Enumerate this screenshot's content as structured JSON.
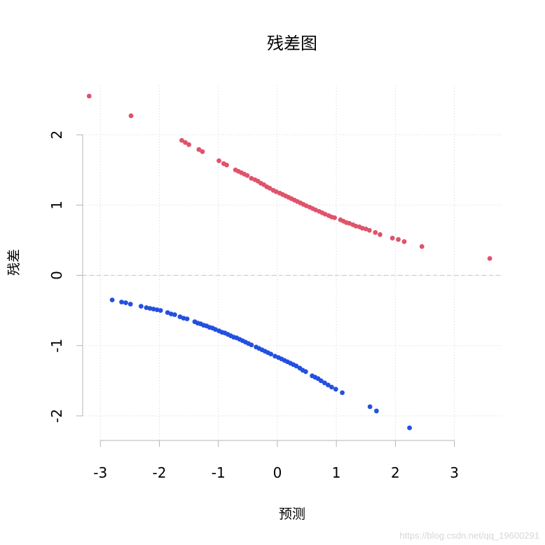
{
  "chart_data": {
    "type": "scatter",
    "title": "残差图",
    "xlabel": "预测",
    "ylabel": "残差",
    "xlim": [
      -3.3,
      3.8
    ],
    "ylim": [
      -2.35,
      2.7
    ],
    "xticks": [
      -3,
      -2,
      -1,
      0,
      1,
      2,
      3
    ],
    "yticks": [
      -2,
      -1,
      0,
      1,
      2
    ],
    "xtick_labels": [
      "-3",
      "-2",
      "-1",
      "0",
      "1",
      "2",
      "3"
    ],
    "ytick_labels": [
      "-2",
      "-1",
      "0",
      "1",
      "2"
    ],
    "grid": true,
    "reference_line_y": 0,
    "series": [
      {
        "color": "#df536b",
        "points": [
          [
            -3.19,
            2.55
          ],
          [
            -2.48,
            2.27
          ],
          [
            -1.62,
            1.92
          ],
          [
            -1.56,
            1.89
          ],
          [
            -1.5,
            1.86
          ],
          [
            -1.33,
            1.79
          ],
          [
            -1.27,
            1.76
          ],
          [
            -0.99,
            1.63
          ],
          [
            -0.91,
            1.59
          ],
          [
            -0.86,
            1.57
          ],
          [
            -0.71,
            1.5
          ],
          [
            -0.66,
            1.48
          ],
          [
            -0.61,
            1.46
          ],
          [
            -0.56,
            1.44
          ],
          [
            -0.51,
            1.42
          ],
          [
            -0.44,
            1.38
          ],
          [
            -0.38,
            1.36
          ],
          [
            -0.33,
            1.34
          ],
          [
            -0.28,
            1.31
          ],
          [
            -0.23,
            1.29
          ],
          [
            -0.18,
            1.26
          ],
          [
            -0.13,
            1.24
          ],
          [
            -0.07,
            1.21
          ],
          [
            -0.02,
            1.19
          ],
          [
            0.04,
            1.17
          ],
          [
            0.09,
            1.15
          ],
          [
            0.14,
            1.13
          ],
          [
            0.19,
            1.11
          ],
          [
            0.24,
            1.09
          ],
          [
            0.29,
            1.07
          ],
          [
            0.34,
            1.05
          ],
          [
            0.39,
            1.03
          ],
          [
            0.44,
            1.01
          ],
          [
            0.49,
            0.99
          ],
          [
            0.55,
            0.97
          ],
          [
            0.6,
            0.95
          ],
          [
            0.65,
            0.93
          ],
          [
            0.71,
            0.91
          ],
          [
            0.76,
            0.89
          ],
          [
            0.81,
            0.87
          ],
          [
            0.87,
            0.85
          ],
          [
            0.92,
            0.83
          ],
          [
            0.97,
            0.82
          ],
          [
            1.07,
            0.79
          ],
          [
            1.12,
            0.77
          ],
          [
            1.17,
            0.75
          ],
          [
            1.22,
            0.74
          ],
          [
            1.28,
            0.72
          ],
          [
            1.33,
            0.7
          ],
          [
            1.39,
            0.69
          ],
          [
            1.44,
            0.67
          ],
          [
            1.5,
            0.66
          ],
          [
            1.56,
            0.64
          ],
          [
            1.66,
            0.61
          ],
          [
            1.74,
            0.58
          ],
          [
            1.95,
            0.53
          ],
          [
            2.05,
            0.51
          ],
          [
            2.15,
            0.48
          ],
          [
            2.45,
            0.41
          ],
          [
            3.6,
            0.24
          ]
        ]
      },
      {
        "color": "#2350e0",
        "points": [
          [
            -2.8,
            -0.35
          ],
          [
            -2.64,
            -0.38
          ],
          [
            -2.57,
            -0.39
          ],
          [
            -2.49,
            -0.41
          ],
          [
            -2.31,
            -0.44
          ],
          [
            -2.22,
            -0.46
          ],
          [
            -2.16,
            -0.47
          ],
          [
            -2.1,
            -0.48
          ],
          [
            -2.04,
            -0.49
          ],
          [
            -1.98,
            -0.5
          ],
          [
            -1.86,
            -0.53
          ],
          [
            -1.8,
            -0.55
          ],
          [
            -1.74,
            -0.56
          ],
          [
            -1.65,
            -0.59
          ],
          [
            -1.59,
            -0.61
          ],
          [
            -1.53,
            -0.62
          ],
          [
            -1.4,
            -0.66
          ],
          [
            -1.35,
            -0.68
          ],
          [
            -1.3,
            -0.69
          ],
          [
            -1.25,
            -0.71
          ],
          [
            -1.2,
            -0.72
          ],
          [
            -1.15,
            -0.74
          ],
          [
            -1.1,
            -0.75
          ],
          [
            -1.05,
            -0.77
          ],
          [
            -0.99,
            -0.79
          ],
          [
            -0.94,
            -0.81
          ],
          [
            -0.89,
            -0.82
          ],
          [
            -0.84,
            -0.84
          ],
          [
            -0.79,
            -0.86
          ],
          [
            -0.74,
            -0.88
          ],
          [
            -0.69,
            -0.89
          ],
          [
            -0.64,
            -0.91
          ],
          [
            -0.59,
            -0.93
          ],
          [
            -0.54,
            -0.95
          ],
          [
            -0.49,
            -0.97
          ],
          [
            -0.44,
            -0.99
          ],
          [
            -0.36,
            -1.02
          ],
          [
            -0.31,
            -1.04
          ],
          [
            -0.26,
            -1.06
          ],
          [
            -0.21,
            -1.08
          ],
          [
            -0.16,
            -1.1
          ],
          [
            -0.11,
            -1.12
          ],
          [
            -0.04,
            -1.15
          ],
          [
            0.02,
            -1.17
          ],
          [
            0.07,
            -1.19
          ],
          [
            0.12,
            -1.21
          ],
          [
            0.17,
            -1.23
          ],
          [
            0.22,
            -1.25
          ],
          [
            0.27,
            -1.27
          ],
          [
            0.32,
            -1.29
          ],
          [
            0.38,
            -1.32
          ],
          [
            0.43,
            -1.35
          ],
          [
            0.48,
            -1.37
          ],
          [
            0.59,
            -1.43
          ],
          [
            0.64,
            -1.45
          ],
          [
            0.69,
            -1.47
          ],
          [
            0.74,
            -1.5
          ],
          [
            0.8,
            -1.53
          ],
          [
            0.86,
            -1.56
          ],
          [
            0.92,
            -1.59
          ],
          [
            0.99,
            -1.62
          ],
          [
            1.1,
            -1.67
          ],
          [
            1.57,
            -1.87
          ],
          [
            1.68,
            -1.93
          ],
          [
            2.24,
            -2.17
          ]
        ]
      }
    ]
  },
  "watermark": "https://blog.csdn.net/qq_19600291"
}
